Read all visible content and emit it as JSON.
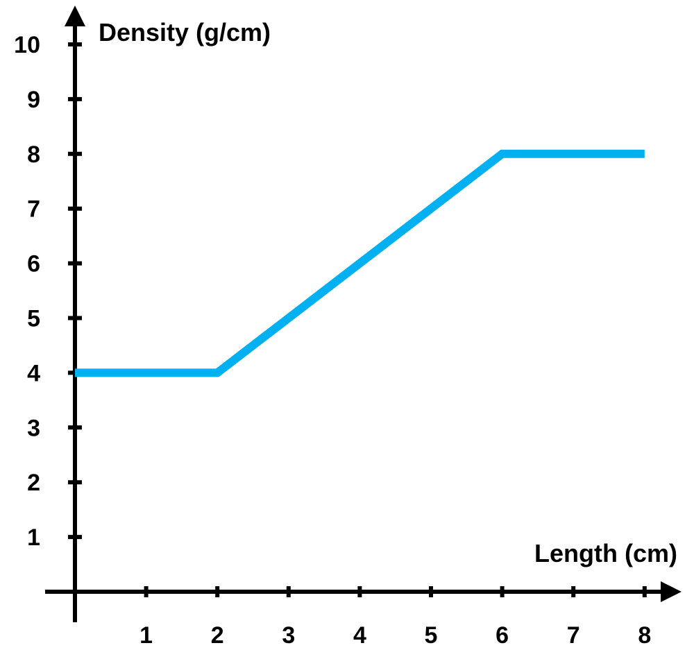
{
  "chart_data": {
    "type": "line",
    "title": "",
    "xlabel": "Length (cm)",
    "ylabel": "Density (g/cm)",
    "xlim": [
      0,
      8
    ],
    "ylim": [
      0,
      10
    ],
    "x_ticks": [
      "1",
      "2",
      "3",
      "4",
      "5",
      "6",
      "7",
      "8"
    ],
    "y_ticks": [
      "1",
      "2",
      "3",
      "4",
      "5",
      "6",
      "7",
      "8",
      "9",
      "10"
    ],
    "grid": false,
    "legend": "none",
    "series": [
      {
        "color": "#00B0F0",
        "points": [
          {
            "x": 0,
            "y": 4
          },
          {
            "x": 2,
            "y": 4
          },
          {
            "x": 6,
            "y": 8
          },
          {
            "x": 8,
            "y": 8
          }
        ]
      }
    ],
    "colors": {
      "axis": "#000000",
      "line": "#00B0F0"
    }
  }
}
